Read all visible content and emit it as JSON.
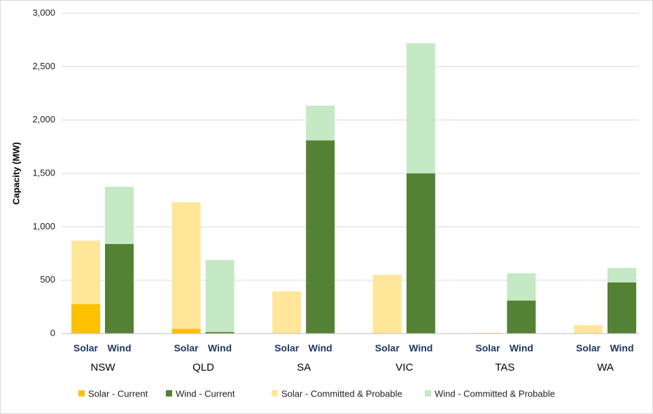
{
  "chart_data": {
    "type": "bar",
    "stacked": true,
    "y_label": "Capacity (MW)",
    "categories": [
      "NSW",
      "QLD",
      "SA",
      "VIC",
      "TAS",
      "WA"
    ],
    "bar_labels": [
      "Solar",
      "Wind"
    ],
    "series": [
      {
        "name": "Solar - Current",
        "stack": "Solar",
        "color": "#ffc000",
        "values": [
          275,
          45,
          5,
          5,
          3,
          5
        ]
      },
      {
        "name": "Wind - Current",
        "stack": "Wind",
        "color": "#548235",
        "values": [
          840,
          15,
          1810,
          1500,
          310,
          480
        ]
      },
      {
        "name": "Solar - Committed & Probable",
        "stack": "Solar",
        "color": "#ffe699",
        "values": [
          595,
          1185,
          390,
          545,
          5,
          75
        ]
      },
      {
        "name": "Wind - Committed & Probable",
        "stack": "Wind",
        "color": "#c5e8c5",
        "values": [
          535,
          675,
          325,
          1220,
          255,
          135
        ]
      }
    ],
    "ylim": [
      0,
      3000
    ],
    "yticks": [
      0,
      500,
      {
        "value": 1000,
        "label": "1,000"
      },
      {
        "value": 1500,
        "label": "1,500"
      },
      {
        "value": 2000,
        "label": "2,000"
      },
      {
        "value": 2500,
        "label": "2,500"
      },
      {
        "value": 3000,
        "label": "3,000"
      }
    ],
    "grid": true,
    "legend": "bottom"
  }
}
